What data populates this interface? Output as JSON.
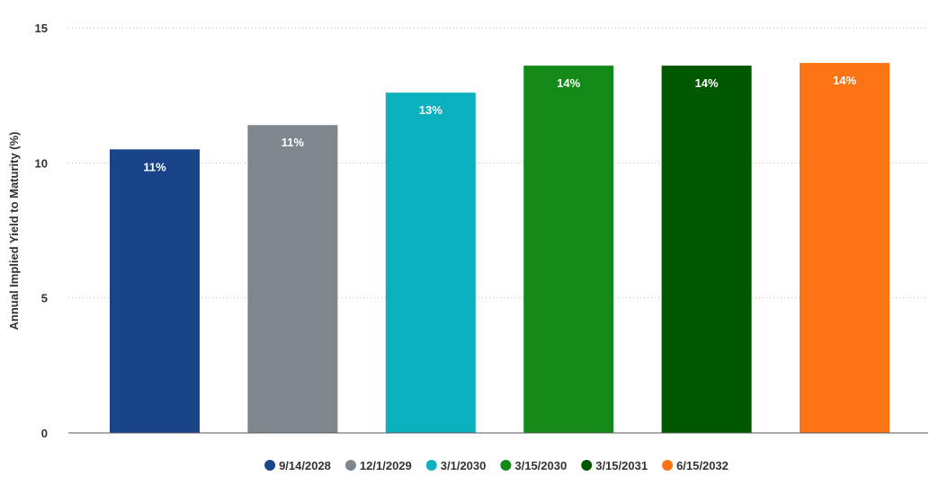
{
  "chart_data": {
    "type": "bar",
    "categories": [
      "9/14/2028",
      "12/1/2029",
      "3/1/2030",
      "3/15/2030",
      "3/15/2031",
      "6/15/2032"
    ],
    "values": [
      10.5,
      11.4,
      12.6,
      13.6,
      13.6,
      13.7
    ],
    "data_labels": [
      "11%",
      "11%",
      "13%",
      "14%",
      "14%",
      "14%"
    ],
    "colors": [
      "#1a448a",
      "#7f868c",
      "#0cb1c0",
      "#138a17",
      "#005900",
      "#fc7414"
    ],
    "ylabel": "Annual Implied Yield to Maturity (%)",
    "ylim": [
      0,
      15
    ],
    "yticks": [
      0,
      5,
      10,
      15
    ],
    "ytick_labels": [
      "0",
      "5",
      "10",
      "15"
    ],
    "grid": true,
    "legend": {
      "position": "bottom",
      "entries": [
        "9/14/2028",
        "12/1/2029",
        "3/1/2030",
        "3/15/2030",
        "3/15/2031",
        "6/15/2032"
      ]
    }
  }
}
